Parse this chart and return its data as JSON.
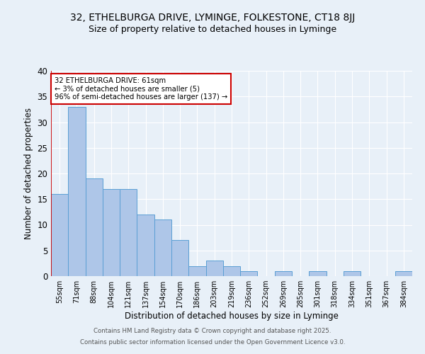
{
  "title1": "32, ETHELBURGA DRIVE, LYMINGE, FOLKESTONE, CT18 8JJ",
  "title2": "Size of property relative to detached houses in Lyminge",
  "xlabel": "Distribution of detached houses by size in Lyminge",
  "ylabel": "Number of detached properties",
  "categories": [
    "55sqm",
    "71sqm",
    "88sqm",
    "104sqm",
    "121sqm",
    "137sqm",
    "154sqm",
    "170sqm",
    "186sqm",
    "203sqm",
    "219sqm",
    "236sqm",
    "252sqm",
    "269sqm",
    "285sqm",
    "301sqm",
    "318sqm",
    "334sqm",
    "351sqm",
    "367sqm",
    "384sqm"
  ],
  "values": [
    16,
    33,
    19,
    17,
    17,
    12,
    11,
    7,
    2,
    3,
    2,
    1,
    0,
    1,
    0,
    1,
    0,
    1,
    0,
    0,
    1
  ],
  "bar_color": "#aec6e8",
  "bar_edge_color": "#5a9fd4",
  "background_color": "#e8f0f8",
  "grid_color": "#ffffff",
  "annotation_box_text": "32 ETHELBURGA DRIVE: 61sqm\n← 3% of detached houses are smaller (5)\n96% of semi-detached houses are larger (137) →",
  "annotation_box_color": "#ffffff",
  "annotation_box_edge_color": "#cc0000",
  "ylim": [
    0,
    40
  ],
  "yticks": [
    0,
    5,
    10,
    15,
    20,
    25,
    30,
    35,
    40
  ],
  "footer1": "Contains HM Land Registry data © Crown copyright and database right 2025.",
  "footer2": "Contains public sector information licensed under the Open Government Licence v3.0."
}
